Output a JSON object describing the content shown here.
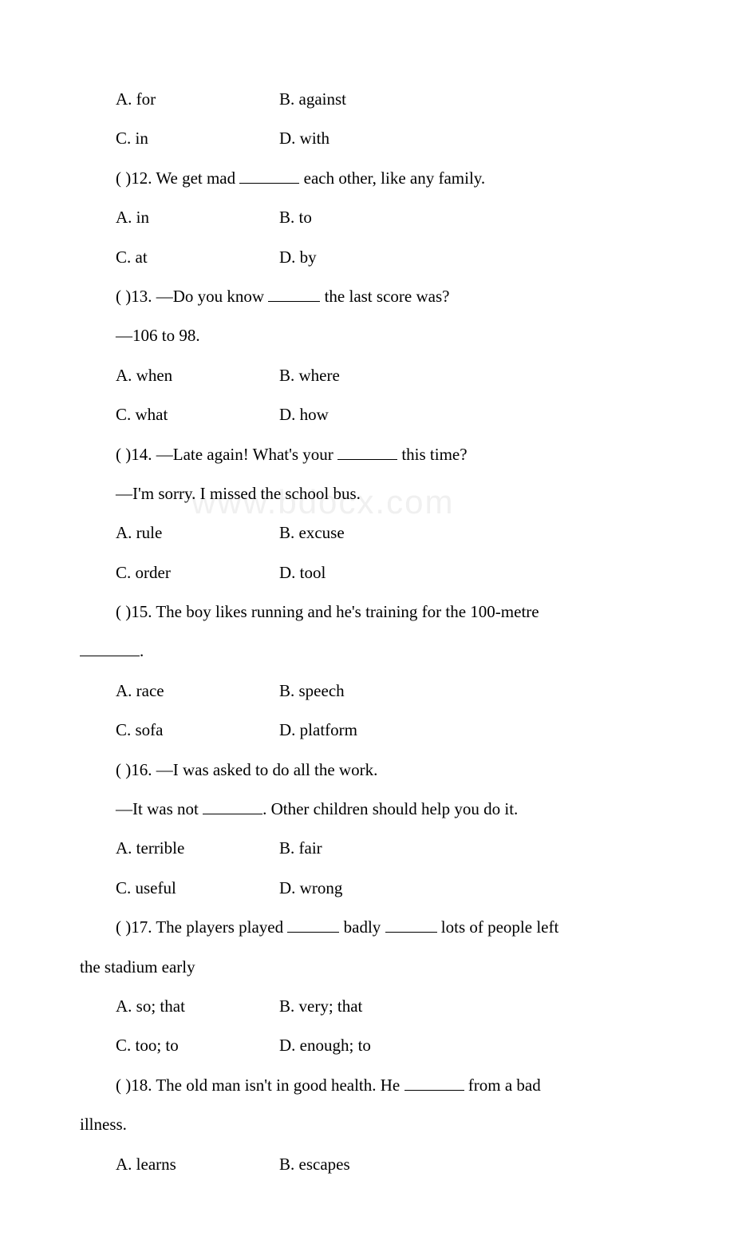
{
  "watermark": "www.bdocx.com",
  "q11": {
    "optA": "A. for",
    "optB": "B. against",
    "optC": "C. in",
    "optD": "D. with"
  },
  "q12": {
    "prompt_pre": "(  )12. We get mad ",
    "prompt_post": " each other, like any family.",
    "optA": "A. in",
    "optB": "B. to",
    "optC": "C. at",
    "optD": "D. by"
  },
  "q13": {
    "prompt_pre": "(  )13. —Do you know ",
    "prompt_post": " the last score was?",
    "answer_line": "—106 to 98.",
    "optA": "A. when",
    "optB": "B. where",
    "optC": "C. what",
    "optD": "D. how"
  },
  "q14": {
    "prompt_pre": "(  )14. —Late again! What's your ",
    "prompt_post": " this time?",
    "answer_line": "—I'm sorry. I missed the school bus.",
    "optA": "A. rule",
    "optB": "B. excuse",
    "optC": "C. order",
    "optD": "D. tool"
  },
  "q15": {
    "prompt_pre": "(  )15. The boy likes running and he's training for the 100-metre",
    "prompt_wrap": ".",
    "optA": "A. race",
    "optB": "B. speech",
    "optC": "C. sofa",
    "optD": "D. platform"
  },
  "q16": {
    "prompt": "(  )16. —I was asked to do all the work.",
    "answer_pre": "—It was not ",
    "answer_post": ". Other children should help you do it.",
    "optA": "A. terrible",
    "optB": "B. fair",
    "optC": "C. useful",
    "optD": "D. wrong"
  },
  "q17": {
    "prompt_pre": "(  )17. The players played ",
    "prompt_mid": " badly ",
    "prompt_post": " lots of people left",
    "prompt_wrap": "the stadium early",
    "optA": "A. so; that",
    "optB": "B. very; that",
    "optC": "C. too; to",
    "optD": "D. enough; to"
  },
  "q18": {
    "prompt_pre": "(  )18. The old man isn't in good health. He ",
    "prompt_post": " from a bad",
    "prompt_wrap": "illness.",
    "optA": "A. learns",
    "optB": "B. escapes"
  }
}
